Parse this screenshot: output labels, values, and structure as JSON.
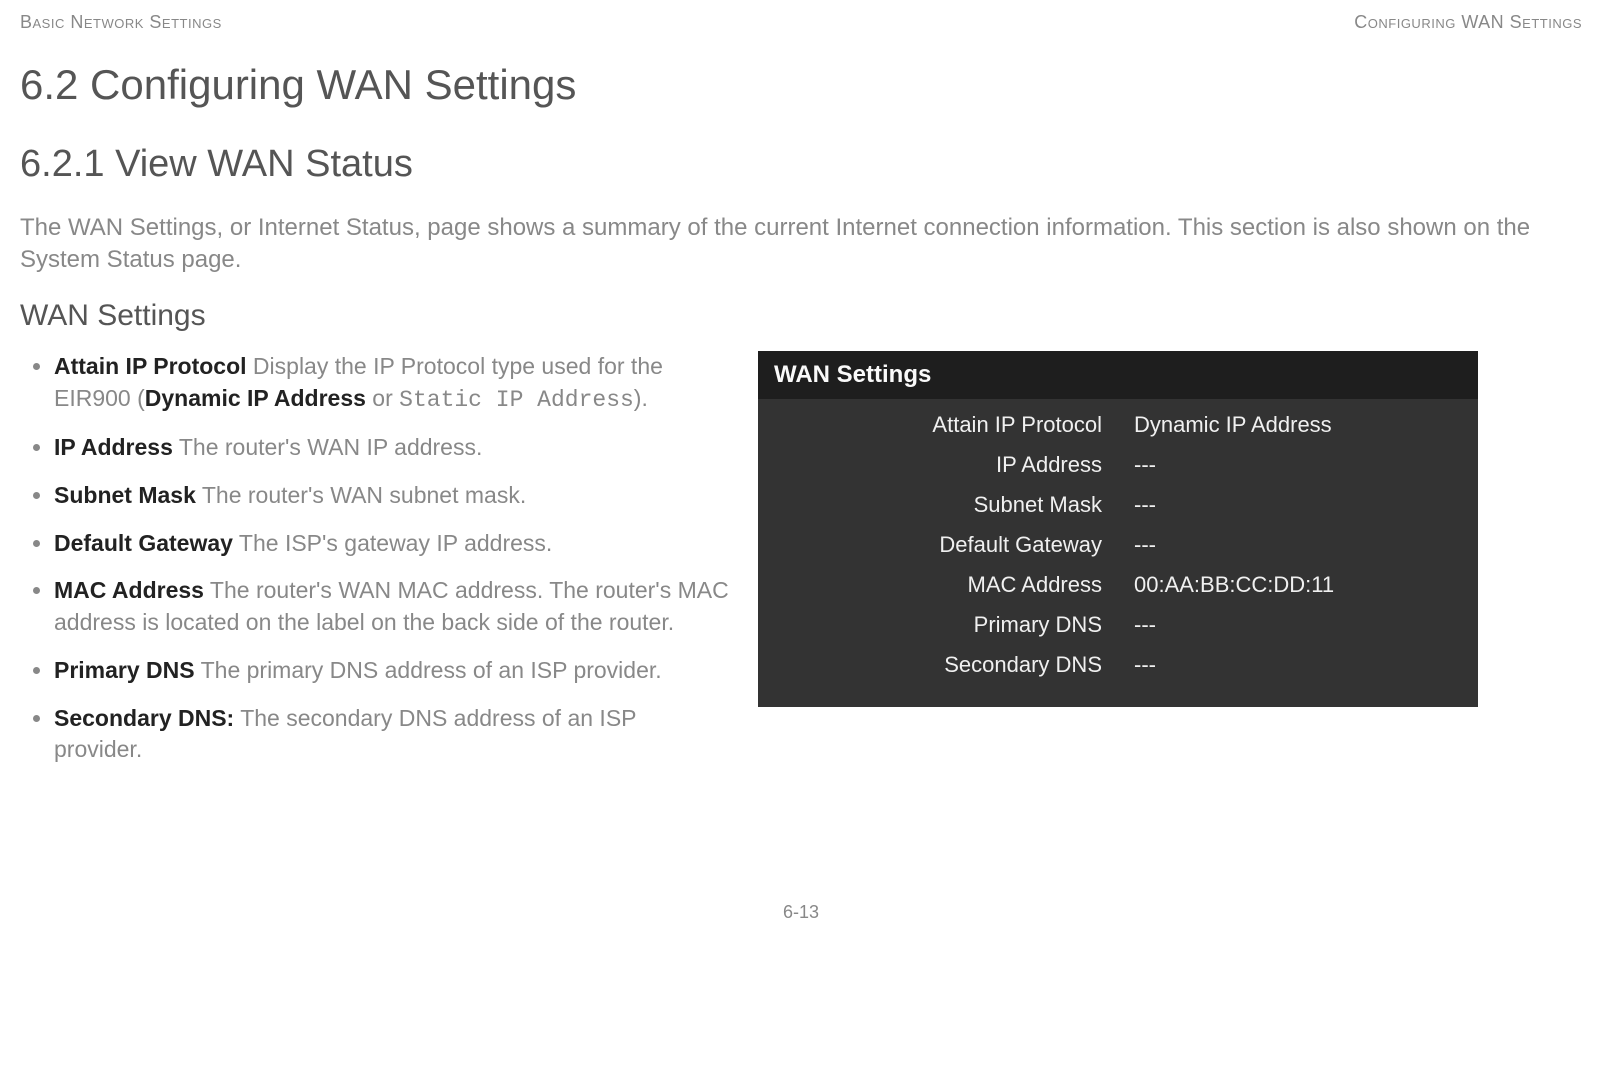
{
  "header": {
    "left": "Basic Network Settings",
    "right": "Configuring WAN Settings"
  },
  "section_heading": "6.2 Configuring WAN Settings",
  "subsection_heading": "6.2.1 View WAN Status",
  "intro_paragraph": "The WAN Settings, or Internet Status, page shows a summary of the current Internet connection information. This section is also shown on the System Status page.",
  "wan_settings_heading": "WAN Settings",
  "bullets": [
    {
      "term": "Attain IP Protocol",
      "pre": "  Display the IP Protocol type used for the EIR900 (",
      "bold_inline": "Dynamic IP Address",
      "mid": " or ",
      "mono": "Static IP Address",
      "post": ")."
    },
    {
      "term": "IP Address",
      "rest": "  The router's WAN IP address."
    },
    {
      "term": "Subnet Mask",
      "rest": "  The router's WAN subnet mask."
    },
    {
      "term": "Default Gateway",
      "rest": "  The ISP's gateway IP address."
    },
    {
      "term": "MAC Address",
      "rest": "  The router's WAN MAC address. The router's MAC address is located on the label on the back side of the router."
    },
    {
      "term": "Primary DNS",
      "rest": "  The primary DNS address of an ISP provider."
    },
    {
      "term": "Secondary DNS:",
      "rest": " The secondary DNS address of an ISP provider."
    }
  ],
  "panel": {
    "title": "WAN Settings",
    "rows": [
      {
        "label": "Attain IP Protocol",
        "value": "Dynamic IP Address"
      },
      {
        "label": "IP Address",
        "value": "---"
      },
      {
        "label": "Subnet Mask",
        "value": "---"
      },
      {
        "label": "Default Gateway",
        "value": "---"
      },
      {
        "label": "MAC Address",
        "value": "00:AA:BB:CC:DD:11"
      },
      {
        "label": "Primary DNS",
        "value": "---"
      },
      {
        "label": "Secondary DNS",
        "value": "---"
      }
    ]
  },
  "page_number": "6-13"
}
